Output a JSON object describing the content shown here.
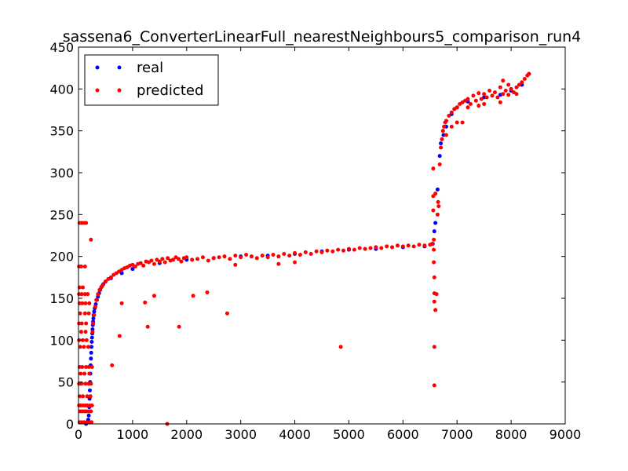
{
  "chart_data": {
    "type": "scatter",
    "title": "sassena6_ConverterLinearFull_nearestNeighbours5_comparison_run4",
    "xlabel": "",
    "ylabel": "",
    "xlim": [
      0,
      9000
    ],
    "ylim": [
      0,
      450
    ],
    "xticks": [
      0,
      1000,
      2000,
      3000,
      4000,
      5000,
      6000,
      7000,
      8000,
      9000
    ],
    "yticks": [
      0,
      50,
      100,
      150,
      200,
      250,
      300,
      350,
      400,
      450
    ],
    "grid": false,
    "legend_position": "top-left",
    "series": [
      {
        "name": "real",
        "color": "#0000ff",
        "points": [
          [
            140,
            0
          ],
          [
            160,
            2
          ],
          [
            180,
            5
          ],
          [
            190,
            10
          ],
          [
            200,
            20
          ],
          [
            205,
            30
          ],
          [
            210,
            40
          ],
          [
            215,
            50
          ],
          [
            220,
            60
          ],
          [
            225,
            70
          ],
          [
            230,
            78
          ],
          [
            235,
            85
          ],
          [
            240,
            92
          ],
          [
            245,
            98
          ],
          [
            250,
            103
          ],
          [
            255,
            108
          ],
          [
            260,
            113
          ],
          [
            265,
            118
          ],
          [
            270,
            122
          ],
          [
            275,
            126
          ],
          [
            280,
            130
          ],
          [
            290,
            134
          ],
          [
            300,
            138
          ],
          [
            320,
            143
          ],
          [
            340,
            148
          ],
          [
            360,
            152
          ],
          [
            380,
            156
          ],
          [
            400,
            160
          ],
          [
            430,
            164
          ],
          [
            460,
            167
          ],
          [
            500,
            170
          ],
          [
            600,
            174
          ],
          [
            800,
            180
          ],
          [
            1000,
            185
          ],
          [
            1500,
            192
          ],
          [
            2000,
            196
          ],
          [
            2500,
            198
          ],
          [
            3000,
            200
          ],
          [
            3500,
            201
          ],
          [
            4000,
            203
          ],
          [
            4500,
            206
          ],
          [
            5000,
            208
          ],
          [
            5500,
            209
          ],
          [
            6000,
            211
          ],
          [
            6400,
            212
          ],
          [
            6550,
            215
          ],
          [
            6580,
            230
          ],
          [
            6600,
            240
          ],
          [
            6640,
            280
          ],
          [
            6680,
            320
          ],
          [
            6700,
            335
          ],
          [
            6750,
            345
          ],
          [
            6800,
            355
          ],
          [
            6900,
            370
          ],
          [
            7000,
            378
          ],
          [
            7200,
            385
          ],
          [
            7500,
            390
          ],
          [
            7800,
            393
          ],
          [
            8000,
            398
          ],
          [
            8200,
            405
          ],
          [
            8330,
            418
          ]
        ]
      },
      {
        "name": "predicted",
        "color": "#ff0000",
        "points": [
          [
            20,
            240
          ],
          [
            60,
            240
          ],
          [
            100,
            240
          ],
          [
            140,
            240
          ],
          [
            230,
            220
          ],
          [
            10,
            188
          ],
          [
            50,
            188
          ],
          [
            120,
            188
          ],
          [
            20,
            163
          ],
          [
            80,
            163
          ],
          [
            10,
            155
          ],
          [
            60,
            155
          ],
          [
            120,
            155
          ],
          [
            170,
            155
          ],
          [
            20,
            144
          ],
          [
            70,
            144
          ],
          [
            130,
            144
          ],
          [
            200,
            144
          ],
          [
            30,
            132
          ],
          [
            120,
            132
          ],
          [
            190,
            132
          ],
          [
            10,
            120
          ],
          [
            60,
            120
          ],
          [
            140,
            120
          ],
          [
            50,
            110
          ],
          [
            130,
            110
          ],
          [
            10,
            100
          ],
          [
            80,
            100
          ],
          [
            150,
            100
          ],
          [
            30,
            92
          ],
          [
            100,
            92
          ],
          [
            180,
            92
          ],
          [
            20,
            68
          ],
          [
            70,
            68
          ],
          [
            140,
            68
          ],
          [
            190,
            68
          ],
          [
            250,
            68
          ],
          [
            40,
            60
          ],
          [
            110,
            60
          ],
          [
            200,
            60
          ],
          [
            10,
            48
          ],
          [
            60,
            48
          ],
          [
            130,
            48
          ],
          [
            190,
            48
          ],
          [
            230,
            48
          ],
          [
            20,
            33
          ],
          [
            80,
            33
          ],
          [
            160,
            33
          ],
          [
            220,
            33
          ],
          [
            10,
            22
          ],
          [
            40,
            22
          ],
          [
            80,
            22
          ],
          [
            120,
            22
          ],
          [
            160,
            22
          ],
          [
            210,
            22
          ],
          [
            250,
            22
          ],
          [
            30,
            15
          ],
          [
            70,
            15
          ],
          [
            110,
            15
          ],
          [
            150,
            15
          ],
          [
            190,
            15
          ],
          [
            230,
            15
          ],
          [
            20,
            2
          ],
          [
            60,
            2
          ],
          [
            100,
            2
          ],
          [
            150,
            2
          ],
          [
            200,
            2
          ],
          [
            240,
            2
          ],
          [
            260,
            110
          ],
          [
            270,
            120
          ],
          [
            290,
            130
          ],
          [
            310,
            140
          ],
          [
            330,
            148
          ],
          [
            360,
            155
          ],
          [
            390,
            160
          ],
          [
            420,
            163
          ],
          [
            450,
            166
          ],
          [
            500,
            170
          ],
          [
            550,
            173
          ],
          [
            600,
            175
          ],
          [
            650,
            178
          ],
          [
            700,
            180
          ],
          [
            750,
            182
          ],
          [
            800,
            184
          ],
          [
            850,
            186
          ],
          [
            900,
            187
          ],
          [
            950,
            189
          ],
          [
            1000,
            190
          ],
          [
            1050,
            188
          ],
          [
            1100,
            191
          ],
          [
            1150,
            192
          ],
          [
            1200,
            189
          ],
          [
            1250,
            194
          ],
          [
            1300,
            193
          ],
          [
            1350,
            195
          ],
          [
            1400,
            191
          ],
          [
            1450,
            196
          ],
          [
            1500,
            194
          ],
          [
            1550,
            197
          ],
          [
            1600,
            193
          ],
          [
            1650,
            198
          ],
          [
            1700,
            195
          ],
          [
            1750,
            196
          ],
          [
            1800,
            199
          ],
          [
            1850,
            197
          ],
          [
            1900,
            194
          ],
          [
            1950,
            198
          ],
          [
            2000,
            199
          ],
          [
            2100,
            196
          ],
          [
            2200,
            197
          ],
          [
            2300,
            199
          ],
          [
            2400,
            195
          ],
          [
            2500,
            198
          ],
          [
            2600,
            199
          ],
          [
            2700,
            200
          ],
          [
            2800,
            197
          ],
          [
            2900,
            201
          ],
          [
            3000,
            199
          ],
          [
            3100,
            202
          ],
          [
            3200,
            200
          ],
          [
            3300,
            198
          ],
          [
            3400,
            201
          ],
          [
            3500,
            199
          ],
          [
            3600,
            202
          ],
          [
            3700,
            200
          ],
          [
            3800,
            203
          ],
          [
            3900,
            201
          ],
          [
            4000,
            204
          ],
          [
            4100,
            202
          ],
          [
            4200,
            205
          ],
          [
            4300,
            203
          ],
          [
            4400,
            206
          ],
          [
            4500,
            205
          ],
          [
            4600,
            207
          ],
          [
            4700,
            206
          ],
          [
            4800,
            208
          ],
          [
            4900,
            207
          ],
          [
            5000,
            209
          ],
          [
            5100,
            208
          ],
          [
            5200,
            210
          ],
          [
            5300,
            209
          ],
          [
            5400,
            210
          ],
          [
            5500,
            211
          ],
          [
            5600,
            210
          ],
          [
            5700,
            212
          ],
          [
            5800,
            211
          ],
          [
            5900,
            213
          ],
          [
            6000,
            212
          ],
          [
            6100,
            213
          ],
          [
            6200,
            212
          ],
          [
            6300,
            214
          ],
          [
            6400,
            213
          ],
          [
            6500,
            214
          ],
          [
            6540,
            215
          ],
          [
            760,
            105
          ],
          [
            800,
            144
          ],
          [
            620,
            70
          ],
          [
            1230,
            145
          ],
          [
            1280,
            116
          ],
          [
            1400,
            153
          ],
          [
            1860,
            116
          ],
          [
            2120,
            153
          ],
          [
            2380,
            157
          ],
          [
            2750,
            132
          ],
          [
            4850,
            92
          ],
          [
            1640,
            0
          ],
          [
            2900,
            190
          ],
          [
            3700,
            191
          ],
          [
            4000,
            193
          ],
          [
            6560,
            305
          ],
          [
            6560,
            272
          ],
          [
            6560,
            255
          ],
          [
            6570,
            220
          ],
          [
            6570,
            208
          ],
          [
            6570,
            193
          ],
          [
            6580,
            175
          ],
          [
            6580,
            156
          ],
          [
            6580,
            146
          ],
          [
            6580,
            92
          ],
          [
            6580,
            46
          ],
          [
            6600,
            136
          ],
          [
            6620,
            155
          ],
          [
            6640,
            250
          ],
          [
            6660,
            260
          ],
          [
            6680,
            310
          ],
          [
            6700,
            330
          ],
          [
            6720,
            340
          ],
          [
            6740,
            350
          ],
          [
            6760,
            355
          ],
          [
            6780,
            360
          ],
          [
            6800,
            362
          ],
          [
            6850,
            368
          ],
          [
            6900,
            372
          ],
          [
            6950,
            376
          ],
          [
            7000,
            378
          ],
          [
            7050,
            382
          ],
          [
            7100,
            384
          ],
          [
            7150,
            386
          ],
          [
            7200,
            388
          ],
          [
            7250,
            382
          ],
          [
            7300,
            392
          ],
          [
            7350,
            386
          ],
          [
            7400,
            395
          ],
          [
            7450,
            388
          ],
          [
            7500,
            394
          ],
          [
            7550,
            390
          ],
          [
            7600,
            398
          ],
          [
            7650,
            392
          ],
          [
            7700,
            396
          ],
          [
            7750,
            390
          ],
          [
            7800,
            402
          ],
          [
            7850,
            394
          ],
          [
            7900,
            398
          ],
          [
            7950,
            393
          ],
          [
            8000,
            400
          ],
          [
            8050,
            396
          ],
          [
            8100,
            402
          ],
          [
            8150,
            405
          ],
          [
            8200,
            408
          ],
          [
            8250,
            412
          ],
          [
            8300,
            416
          ],
          [
            8330,
            418
          ],
          [
            7850,
            410
          ],
          [
            7950,
            405
          ],
          [
            7100,
            360
          ],
          [
            7400,
            380
          ],
          [
            6600,
            275
          ],
          [
            6650,
            265
          ],
          [
            7000,
            360
          ],
          [
            7200,
            378
          ],
          [
            7500,
            382
          ],
          [
            7800,
            384
          ],
          [
            8100,
            394
          ],
          [
            6800,
            345
          ],
          [
            6900,
            355
          ]
        ]
      }
    ]
  }
}
